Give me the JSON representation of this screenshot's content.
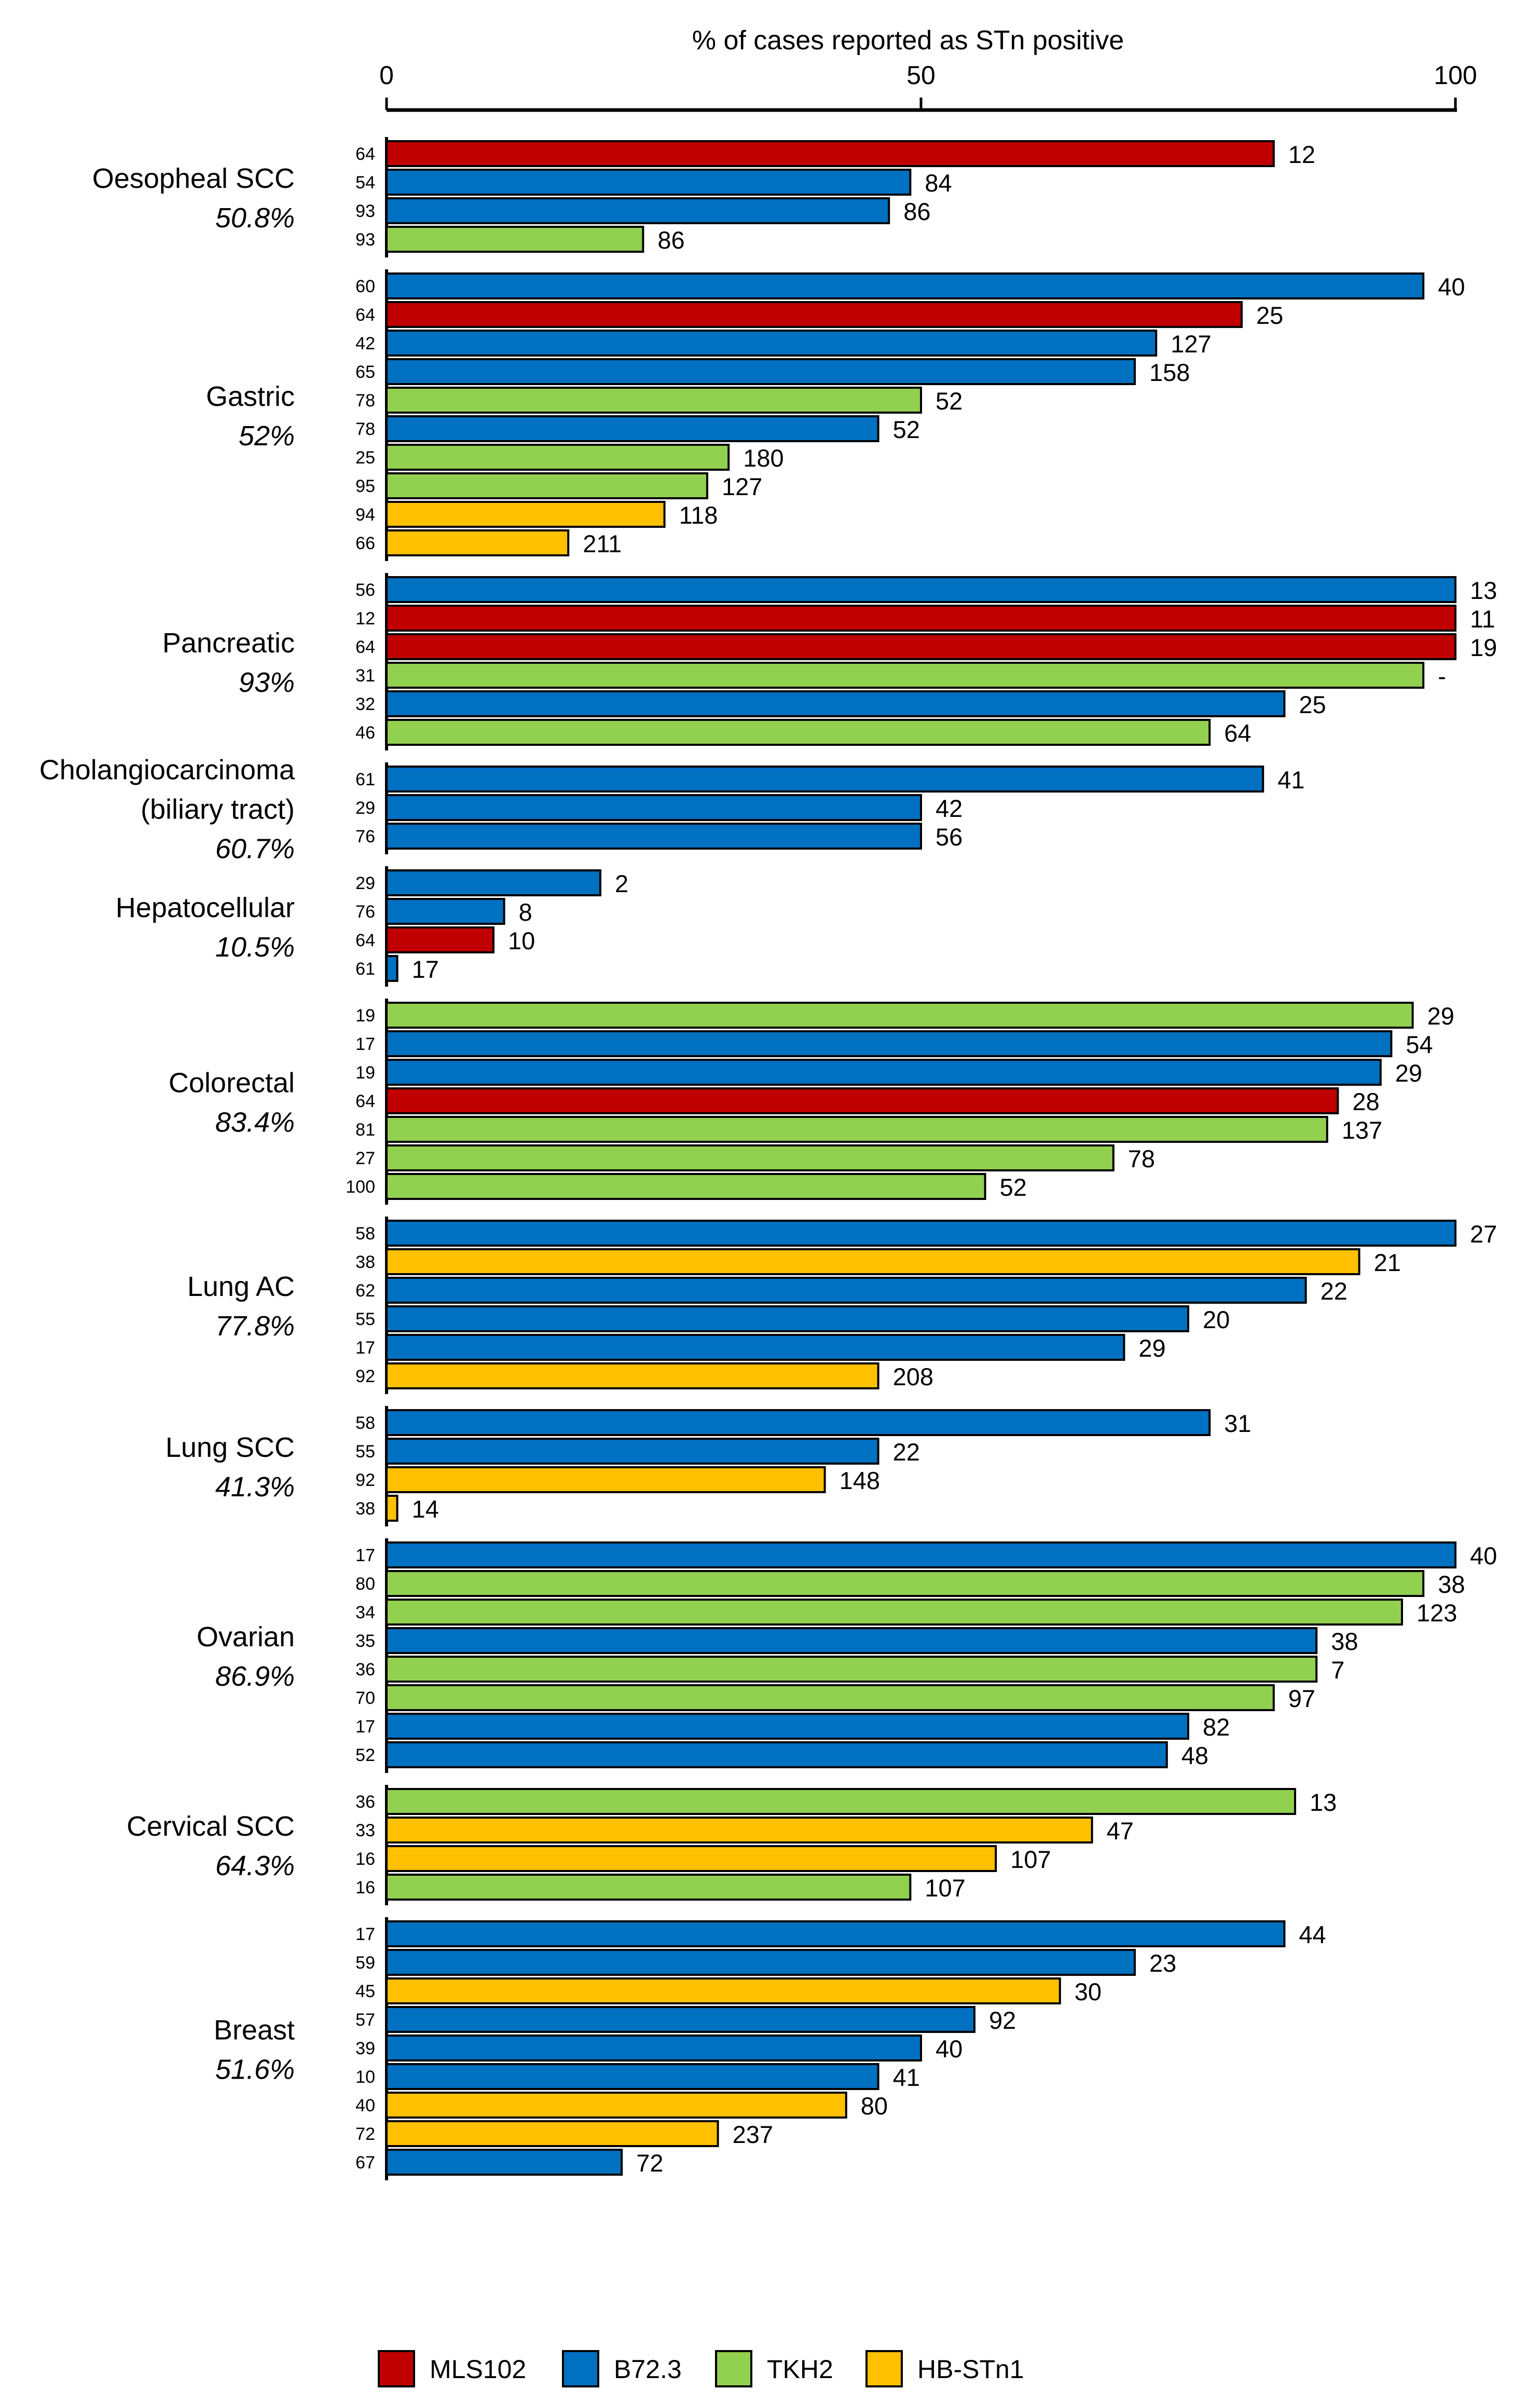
{
  "chart_data": {
    "type": "bar",
    "orientation": "horizontal",
    "title": "",
    "xlabel": "% of cases reported as STn positive",
    "xlim": [
      0,
      100
    ],
    "xticks": [
      "0",
      "50",
      "100"
    ],
    "legend_position": "bottom",
    "series": [
      {
        "name": "MLS102",
        "color": "#C00000"
      },
      {
        "name": "B72.3",
        "color": "#0070C0"
      },
      {
        "name": "TKH2",
        "color": "#92D050"
      },
      {
        "name": "HB-STn1",
        "color": "#FFC000"
      }
    ],
    "groups": [
      {
        "name": "Oesopheal SCC",
        "pct": "50.8%",
        "bars": [
          {
            "ref": "64",
            "antibody": "MLS102",
            "value": 83,
            "n": "12"
          },
          {
            "ref": "54",
            "antibody": "B72.3",
            "value": 49,
            "n": "84"
          },
          {
            "ref": "93",
            "antibody": "B72.3",
            "value": 47,
            "n": "86"
          },
          {
            "ref": "93",
            "antibody": "TKH2",
            "value": 24,
            "n": "86"
          }
        ]
      },
      {
        "name": "Gastric",
        "pct": "52%",
        "bars": [
          {
            "ref": "60",
            "antibody": "B72.3",
            "value": 97,
            "n": "40"
          },
          {
            "ref": "64",
            "antibody": "MLS102",
            "value": 80,
            "n": "25"
          },
          {
            "ref": "42",
            "antibody": "B72.3",
            "value": 72,
            "n": "127"
          },
          {
            "ref": "65",
            "antibody": "B72.3",
            "value": 70,
            "n": "158"
          },
          {
            "ref": "78",
            "antibody": "TKH2",
            "value": 50,
            "n": "52"
          },
          {
            "ref": "78",
            "antibody": "B72.3",
            "value": 46,
            "n": "52"
          },
          {
            "ref": "25",
            "antibody": "TKH2",
            "value": 32,
            "n": "180"
          },
          {
            "ref": "95",
            "antibody": "TKH2",
            "value": 30,
            "n": "127"
          },
          {
            "ref": "94",
            "antibody": "HB-STn1",
            "value": 26,
            "n": "118"
          },
          {
            "ref": "66",
            "antibody": "HB-STn1",
            "value": 17,
            "n": "211"
          }
        ]
      },
      {
        "name": "Pancreatic",
        "pct": "93%",
        "bars": [
          {
            "ref": "56",
            "antibody": "B72.3",
            "value": 100,
            "n": "13"
          },
          {
            "ref": "12",
            "antibody": "MLS102",
            "value": 100,
            "n": "11"
          },
          {
            "ref": "64",
            "antibody": "MLS102",
            "value": 100,
            "n": "19"
          },
          {
            "ref": "31",
            "antibody": "TKH2",
            "value": 97,
            "n": "-"
          },
          {
            "ref": "32",
            "antibody": "B72.3",
            "value": 84,
            "n": "25"
          },
          {
            "ref": "46",
            "antibody": "TKH2",
            "value": 77,
            "n": "64"
          }
        ]
      },
      {
        "name": "Cholangiocarcinoma",
        "name2": "(biliary tract)",
        "pct": "60.7%",
        "bars": [
          {
            "ref": "61",
            "antibody": "B72.3",
            "value": 82,
            "n": "41"
          },
          {
            "ref": "29",
            "antibody": "B72.3",
            "value": 50,
            "n": "42"
          },
          {
            "ref": "76",
            "antibody": "B72.3",
            "value": 50,
            "n": "56"
          }
        ]
      },
      {
        "name": "Hepatocellular",
        "pct": "10.5%",
        "bars": [
          {
            "ref": "29",
            "antibody": "B72.3",
            "value": 20,
            "n": "2"
          },
          {
            "ref": "76",
            "antibody": "B72.3",
            "value": 11,
            "n": "8"
          },
          {
            "ref": "64",
            "antibody": "MLS102",
            "value": 10,
            "n": "10"
          },
          {
            "ref": "61",
            "antibody": "B72.3",
            "value": 1,
            "n": "17"
          }
        ]
      },
      {
        "name": "Colorectal",
        "pct": "83.4%",
        "bars": [
          {
            "ref": "19",
            "antibody": "TKH2",
            "value": 96,
            "n": "29"
          },
          {
            "ref": "17",
            "antibody": "B72.3",
            "value": 94,
            "n": "54"
          },
          {
            "ref": "19",
            "antibody": "B72.3",
            "value": 93,
            "n": "29"
          },
          {
            "ref": "64",
            "antibody": "MLS102",
            "value": 89,
            "n": "28"
          },
          {
            "ref": "81",
            "antibody": "TKH2",
            "value": 88,
            "n": "137"
          },
          {
            "ref": "27",
            "antibody": "TKH2",
            "value": 68,
            "n": "78"
          },
          {
            "ref": "100",
            "antibody": "TKH2",
            "value": 56,
            "n": "52"
          }
        ]
      },
      {
        "name": "Lung AC",
        "pct": "77.8%",
        "bars": [
          {
            "ref": "58",
            "antibody": "B72.3",
            "value": 100,
            "n": "27"
          },
          {
            "ref": "38",
            "antibody": "HB-STn1",
            "value": 91,
            "n": "21"
          },
          {
            "ref": "62",
            "antibody": "B72.3",
            "value": 86,
            "n": "22"
          },
          {
            "ref": "55",
            "antibody": "B72.3",
            "value": 75,
            "n": "20"
          },
          {
            "ref": "17",
            "antibody": "B72.3",
            "value": 69,
            "n": "29"
          },
          {
            "ref": "92",
            "antibody": "HB-STn1",
            "value": 46,
            "n": "208"
          }
        ]
      },
      {
        "name": "Lung SCC",
        "pct": "41.3%",
        "bars": [
          {
            "ref": "58",
            "antibody": "B72.3",
            "value": 77,
            "n": "31"
          },
          {
            "ref": "55",
            "antibody": "B72.3",
            "value": 46,
            "n": "22"
          },
          {
            "ref": "92",
            "antibody": "HB-STn1",
            "value": 41,
            "n": "148"
          },
          {
            "ref": "38",
            "antibody": "HB-STn1",
            "value": 1,
            "n": "14"
          }
        ]
      },
      {
        "name": "Ovarian",
        "pct": "86.9%",
        "bars": [
          {
            "ref": "17",
            "antibody": "B72.3",
            "value": 100,
            "n": "40"
          },
          {
            "ref": "80",
            "antibody": "TKH2",
            "value": 97,
            "n": "38"
          },
          {
            "ref": "34",
            "antibody": "TKH2",
            "value": 95,
            "n": "123"
          },
          {
            "ref": "35",
            "antibody": "B72.3",
            "value": 87,
            "n": "38"
          },
          {
            "ref": "36",
            "antibody": "TKH2",
            "value": 87,
            "n": "7"
          },
          {
            "ref": "70",
            "antibody": "TKH2",
            "value": 83,
            "n": "97"
          },
          {
            "ref": "17",
            "antibody": "B72.3",
            "value": 75,
            "n": "82"
          },
          {
            "ref": "52",
            "antibody": "B72.3",
            "value": 73,
            "n": "48"
          }
        ]
      },
      {
        "name": "Cervical SCC",
        "pct": "64.3%",
        "bars": [
          {
            "ref": "36",
            "antibody": "TKH2",
            "value": 85,
            "n": "13"
          },
          {
            "ref": "33",
            "antibody": "HB-STn1",
            "value": 66,
            "n": "47"
          },
          {
            "ref": "16",
            "antibody": "HB-STn1",
            "value": 57,
            "n": "107"
          },
          {
            "ref": "16",
            "antibody": "TKH2",
            "value": 49,
            "n": "107"
          }
        ]
      },
      {
        "name": "Breast",
        "pct": "51.6%",
        "bars": [
          {
            "ref": "17",
            "antibody": "B72.3",
            "value": 84,
            "n": "44"
          },
          {
            "ref": "59",
            "antibody": "B72.3",
            "value": 70,
            "n": "23"
          },
          {
            "ref": "45",
            "antibody": "HB-STn1",
            "value": 63,
            "n": "30"
          },
          {
            "ref": "57",
            "antibody": "B72.3",
            "value": 55,
            "n": "92"
          },
          {
            "ref": "39",
            "antibody": "B72.3",
            "value": 50,
            "n": "40"
          },
          {
            "ref": "10",
            "antibody": "B72.3",
            "value": 46,
            "n": "41"
          },
          {
            "ref": "40",
            "antibody": "HB-STn1",
            "value": 43,
            "n": "80"
          },
          {
            "ref": "72",
            "antibody": "HB-STn1",
            "value": 31,
            "n": "237"
          },
          {
            "ref": "67",
            "antibody": "B72.3",
            "value": 22,
            "n": "72"
          }
        ]
      }
    ]
  }
}
